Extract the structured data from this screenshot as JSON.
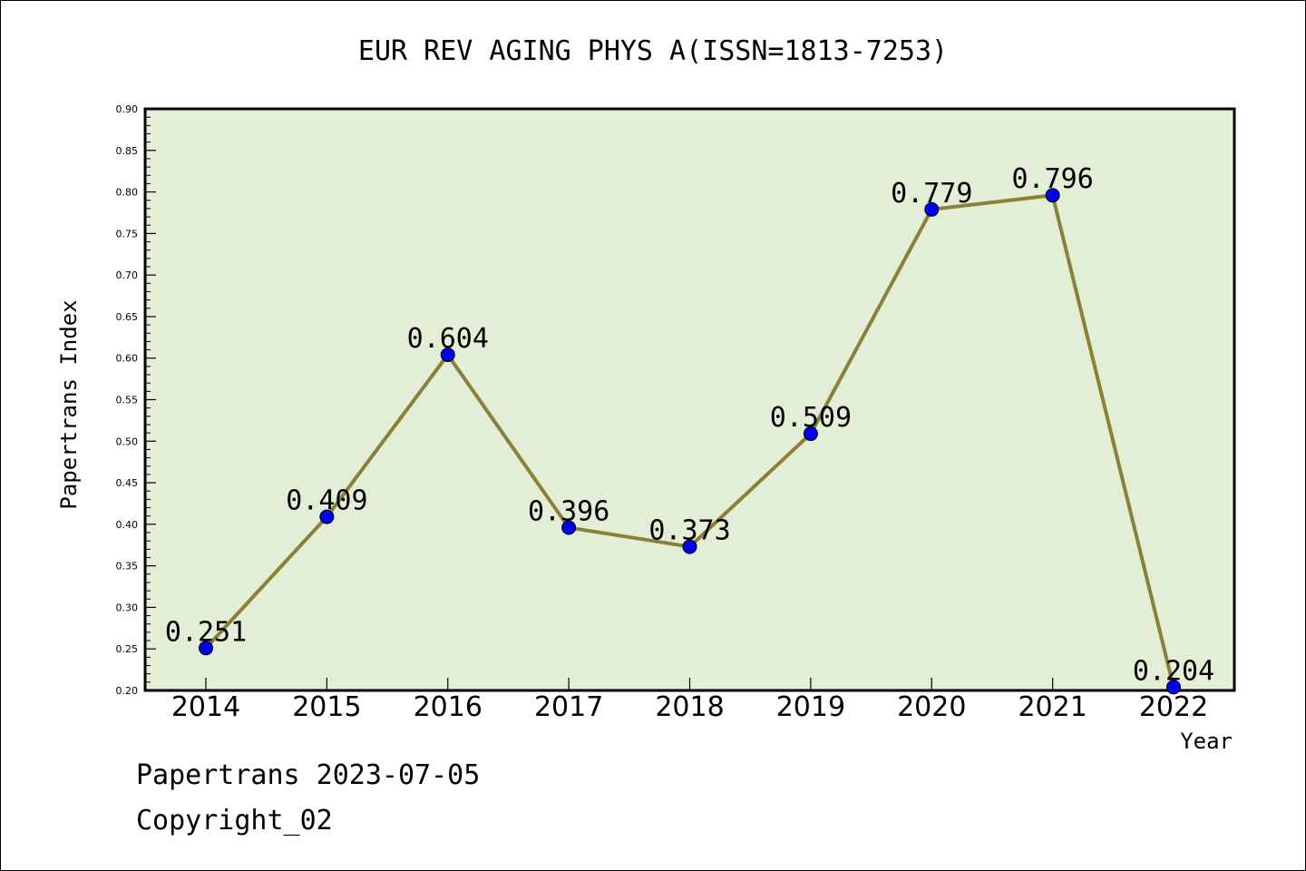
{
  "chart_data": {
    "type": "line",
    "title": "EUR REV AGING PHYS A(ISSN=1813-7253)",
    "xlabel": "Year",
    "ylabel": "Papertrans Index",
    "categories": [
      "2014",
      "2015",
      "2016",
      "2017",
      "2018",
      "2019",
      "2020",
      "2021",
      "2022"
    ],
    "values": [
      0.251,
      0.409,
      0.604,
      0.396,
      0.373,
      0.509,
      0.779,
      0.796,
      0.204
    ],
    "data_labels": [
      "0.251",
      "0.409",
      "0.604",
      "0.396",
      "0.373",
      "0.509",
      "0.779",
      "0.796",
      "0.204"
    ],
    "ylim": [
      0.2,
      0.9
    ],
    "y_ticks": [
      "0.20",
      "0.25",
      "0.30",
      "0.35",
      "0.40",
      "0.45",
      "0.50",
      "0.55",
      "0.60",
      "0.65",
      "0.70",
      "0.75",
      "0.80",
      "0.85",
      "0.90"
    ],
    "grid": false,
    "colors": {
      "plot_background": "#e2efd6",
      "line": "#8b8037",
      "marker": "#0000ee"
    }
  },
  "footer": {
    "line1": "Papertrans 2023-07-05",
    "line2": "Copyright_02"
  }
}
